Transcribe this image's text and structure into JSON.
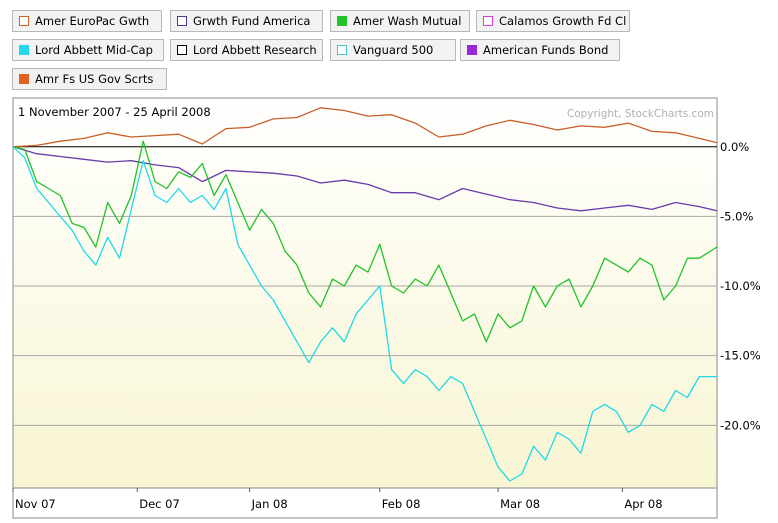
{
  "legend": [
    {
      "label": "Amer EuroPac Gwth",
      "color": "#c8602a",
      "filled": false
    },
    {
      "label": "Grwth Fund America",
      "color": "#4a3a8c",
      "filled": false
    },
    {
      "label": "Amer Wash Mutual",
      "color": "#22c22a",
      "filled": true
    },
    {
      "label": "Calamos Growth Fd Cl",
      "color": "#d040d0",
      "filled": false
    },
    {
      "label": "Lord Abbett Mid-Cap",
      "color": "#22d8e8",
      "filled": true
    },
    {
      "label": "Lord Abbett Research",
      "color": "#000000",
      "filled": false
    },
    {
      "label": "Vanguard 500",
      "color": "#40c8c8",
      "filled": false
    },
    {
      "label": "American Funds Bond",
      "color": "#9a2ad8",
      "filled": true
    },
    {
      "label": "Amr Fs US Gov Scrts",
      "color": "#e06020",
      "filled": true
    }
  ],
  "period": "1 November 2007 - 25 April 2008",
  "copyright": "Copyright, StockCharts.com",
  "chart_data": {
    "type": "line",
    "title": "1 November 2007 - 25 April 2008",
    "xlabel": "",
    "ylabel": "",
    "y_tick_labels": [
      "0.0%",
      "-5.0%",
      "-10.0%",
      "-15.0%",
      "-20.0%"
    ],
    "y_ticks": [
      0,
      -5,
      -10,
      -15,
      -20
    ],
    "x_tick_labels": [
      "Nov 07",
      "Dec 07",
      "Jan 08",
      "Feb 08",
      "Mar 08",
      "Apr 08"
    ],
    "x_ticks": [
      0,
      21,
      40,
      62,
      82,
      103
    ],
    "xlim": [
      0,
      119
    ],
    "ylim": [
      -24.5,
      3.5
    ],
    "series": [
      {
        "name": "Amr Fs US Gov Scrts",
        "color": "#c8602a",
        "x": [
          0,
          4,
          8,
          12,
          16,
          20,
          24,
          28,
          32,
          36,
          40,
          44,
          48,
          52,
          56,
          60,
          64,
          68,
          72,
          76,
          80,
          84,
          88,
          92,
          96,
          100,
          104,
          108,
          112,
          116,
          119
        ],
        "values": [
          0,
          0.1,
          0.4,
          0.6,
          1.0,
          0.7,
          0.8,
          0.9,
          0.2,
          1.3,
          1.4,
          2.0,
          2.1,
          2.8,
          2.6,
          2.2,
          2.3,
          1.7,
          0.7,
          0.9,
          1.5,
          1.9,
          1.6,
          1.2,
          1.5,
          1.4,
          1.7,
          1.1,
          1.0,
          0.6,
          0.3
        ]
      },
      {
        "name": "American Funds Bond",
        "color": "#6a3aaa",
        "x": [
          0,
          4,
          8,
          12,
          16,
          20,
          24,
          28,
          32,
          36,
          40,
          44,
          48,
          52,
          56,
          60,
          64,
          68,
          72,
          76,
          80,
          84,
          88,
          92,
          96,
          100,
          104,
          108,
          112,
          116,
          119
        ],
        "values": [
          0,
          -0.5,
          -0.7,
          -0.9,
          -1.1,
          -1.0,
          -1.3,
          -1.5,
          -2.5,
          -1.7,
          -1.8,
          -1.9,
          -2.1,
          -2.6,
          -2.4,
          -2.7,
          -3.3,
          -3.3,
          -3.8,
          -3.0,
          -3.4,
          -3.8,
          -4.0,
          -4.4,
          -4.6,
          -4.4,
          -4.2,
          -4.5,
          -4.0,
          -4.3,
          -4.6
        ]
      },
      {
        "name": "Amer Wash Mutual",
        "color": "#22c22a",
        "x": [
          0,
          2,
          4,
          6,
          8,
          10,
          12,
          14,
          16,
          18,
          20,
          22,
          24,
          26,
          28,
          30,
          32,
          34,
          36,
          38,
          40,
          42,
          44,
          46,
          48,
          50,
          52,
          54,
          56,
          58,
          60,
          62,
          64,
          66,
          68,
          70,
          72,
          74,
          76,
          78,
          80,
          82,
          84,
          86,
          88,
          90,
          92,
          94,
          96,
          98,
          100,
          102,
          104,
          106,
          108,
          110,
          112,
          114,
          116,
          119
        ],
        "values": [
          0,
          -0.2,
          -2.5,
          -3.0,
          -3.5,
          -5.5,
          -5.8,
          -7.2,
          -4.0,
          -5.5,
          -3.5,
          0.4,
          -2.5,
          -3.0,
          -1.8,
          -2.2,
          -1.2,
          -3.5,
          -2.0,
          -4.0,
          -6.0,
          -4.5,
          -5.5,
          -7.5,
          -8.5,
          -10.5,
          -11.5,
          -9.5,
          -10.0,
          -8.5,
          -9.0,
          -7.0,
          -10.0,
          -10.5,
          -9.5,
          -10.0,
          -8.5,
          -10.5,
          -12.5,
          -12.0,
          -14.0,
          -12.0,
          -13.0,
          -12.5,
          -10.0,
          -11.5,
          -10.0,
          -9.5,
          -11.5,
          -10.0,
          -8.0,
          -8.5,
          -9.0,
          -8.0,
          -8.5,
          -11.0,
          -10.0,
          -8.0,
          -8.0,
          -7.2
        ]
      },
      {
        "name": "Lord Abbett Mid-Cap",
        "color": "#22d8e8",
        "x": [
          0,
          2,
          4,
          6,
          8,
          10,
          12,
          14,
          16,
          18,
          20,
          22,
          24,
          26,
          28,
          30,
          32,
          34,
          36,
          38,
          40,
          42,
          44,
          46,
          48,
          50,
          52,
          54,
          56,
          58,
          60,
          62,
          64,
          66,
          68,
          70,
          72,
          74,
          76,
          78,
          80,
          82,
          84,
          86,
          88,
          90,
          92,
          94,
          96,
          98,
          100,
          102,
          104,
          106,
          108,
          110,
          112,
          114,
          116,
          119
        ],
        "values": [
          0,
          -0.8,
          -3.0,
          -4.0,
          -5.0,
          -6.0,
          -7.5,
          -8.5,
          -6.5,
          -8.0,
          -4.5,
          -1.0,
          -3.5,
          -4.0,
          -3.0,
          -4.0,
          -3.5,
          -4.5,
          -3.0,
          -7.0,
          -8.5,
          -10.0,
          -11.0,
          -12.5,
          -14.0,
          -15.5,
          -14.0,
          -13.0,
          -14.0,
          -12.0,
          -11.0,
          -10.0,
          -16.0,
          -17.0,
          -16.0,
          -16.5,
          -17.5,
          -16.5,
          -17.0,
          -19.0,
          -21.0,
          -23.0,
          -24.0,
          -23.5,
          -21.5,
          -22.5,
          -20.5,
          -21.0,
          -22.0,
          -19.0,
          -18.5,
          -19.0,
          -20.5,
          -20.0,
          -18.5,
          -19.0,
          -17.5,
          -18.0,
          -16.5,
          -16.5
        ]
      }
    ]
  }
}
